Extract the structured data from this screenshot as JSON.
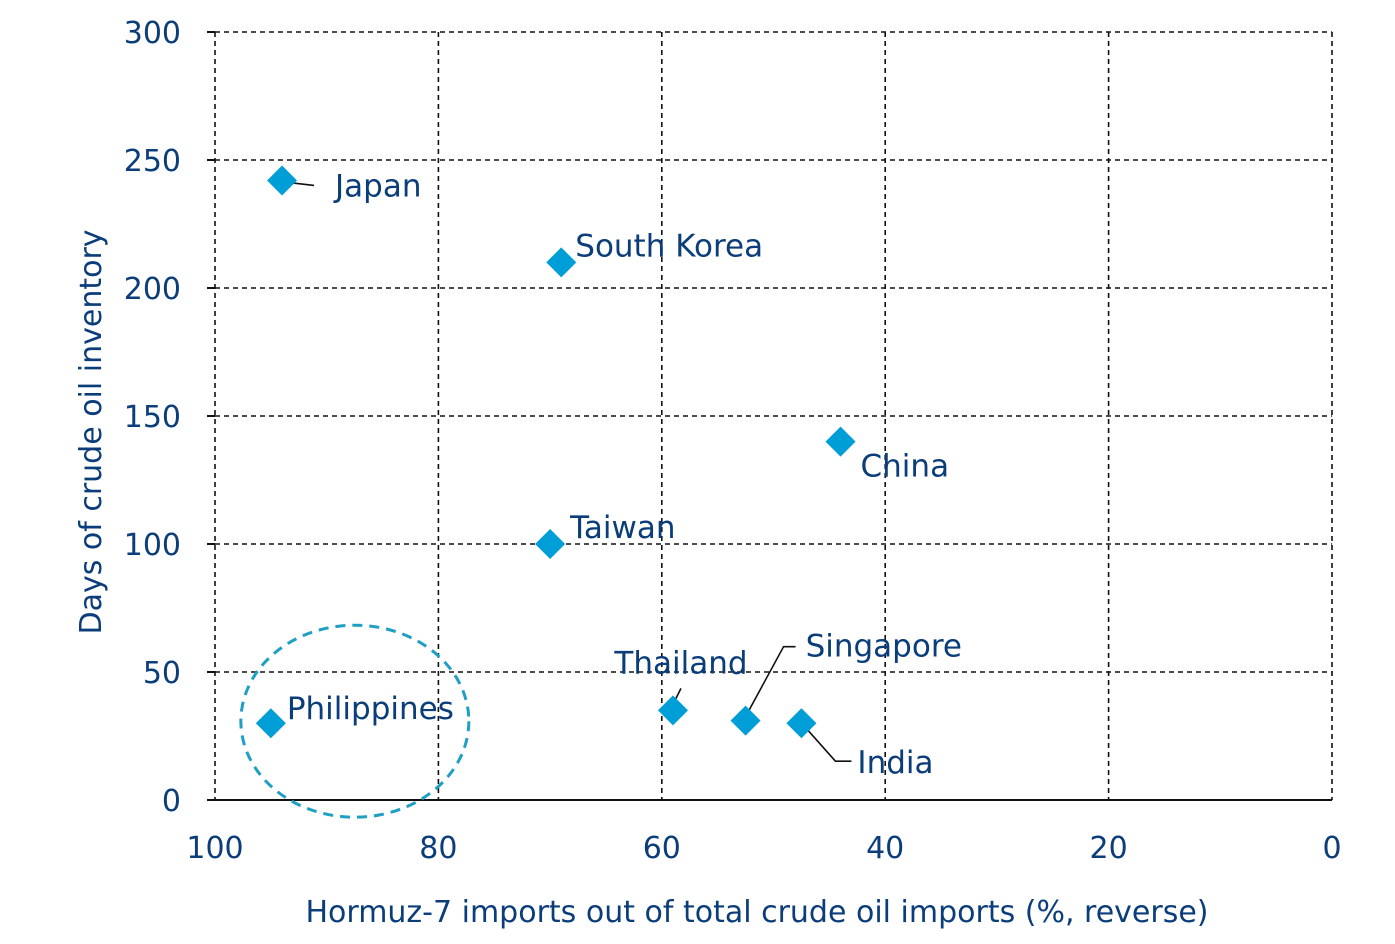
{
  "chart_data": {
    "type": "scatter",
    "title": "",
    "xlabel": "Hormuz-7 imports out of total crude oil imports (%, reverse)",
    "ylabel": "Days of crude oil inventory",
    "xlim": [
      100,
      0
    ],
    "ylim": [
      0,
      300
    ],
    "x_reversed": true,
    "xticks": [
      100,
      80,
      60,
      40,
      20,
      0
    ],
    "yticks": [
      0,
      50,
      100,
      150,
      200,
      250,
      300
    ],
    "grid": true,
    "legend": "none",
    "marker_color": "#009ed6",
    "points": [
      {
        "label": "Japan",
        "x": 94,
        "y": 242
      },
      {
        "label": "South Korea",
        "x": 69,
        "y": 210
      },
      {
        "label": "China",
        "x": 44,
        "y": 140
      },
      {
        "label": "Taiwan",
        "x": 70,
        "y": 100
      },
      {
        "label": "Thailand",
        "x": 59,
        "y": 35
      },
      {
        "label": "Singapore",
        "x": 52.5,
        "y": 31
      },
      {
        "label": "India",
        "x": 47.5,
        "y": 30
      },
      {
        "label": "Philippines",
        "x": 95,
        "y": 30
      }
    ],
    "highlighted": "Philippines"
  }
}
